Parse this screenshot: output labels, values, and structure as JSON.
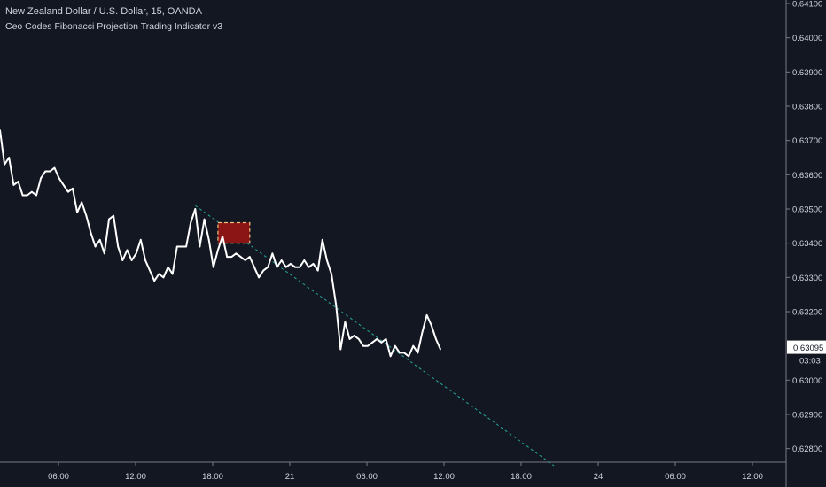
{
  "header": {
    "title": "New Zealand Dollar / U.S. Dollar, 15, OANDA",
    "indicator": "Ceo Codes Fibonacci Projection Trading Indicator v3"
  },
  "price_axis": {
    "current_price_label": "0.63095",
    "countdown_label": "03:03"
  },
  "colors": {
    "background": "#131722",
    "line": "#ffffff",
    "axis": "#787b86",
    "projection": "#26a69a",
    "box_fill": "#8b1414",
    "box_border": "#f0c080"
  },
  "chart_data": {
    "type": "line",
    "title": "New Zealand Dollar / U.S. Dollar, 15, OANDA",
    "xlabel": "",
    "ylabel": "",
    "grid": false,
    "x_ticks": [
      "06:00",
      "12:00",
      "18:00",
      "21",
      "06:00",
      "12:00",
      "18:00",
      "24",
      "06:00",
      "12:00"
    ],
    "y_ticks": [
      "0.64100",
      "0.64000",
      "0.63900",
      "0.63800",
      "0.63700",
      "0.63600",
      "0.63500",
      "0.63400",
      "0.63300",
      "0.63200",
      "0.63000",
      "0.62900",
      "0.62800"
    ],
    "ylim": [
      0.6275,
      0.641
    ],
    "xlim": [
      0,
      100
    ],
    "series": [
      {
        "values": [
          [
            0,
            0.6373
          ],
          [
            1,
            0.6363
          ],
          [
            2,
            0.6365
          ],
          [
            3,
            0.6357
          ],
          [
            4,
            0.6358
          ],
          [
            5,
            0.6354
          ],
          [
            6,
            0.6354
          ],
          [
            7,
            0.6355
          ],
          [
            8,
            0.6354
          ],
          [
            9,
            0.6359
          ],
          [
            10,
            0.6361
          ],
          [
            11,
            0.6361
          ],
          [
            12,
            0.6362
          ],
          [
            13,
            0.6359
          ],
          [
            14,
            0.6357
          ],
          [
            15,
            0.6355
          ],
          [
            16,
            0.6356
          ],
          [
            17,
            0.6349
          ],
          [
            18,
            0.6352
          ],
          [
            19,
            0.6348
          ],
          [
            20,
            0.6343
          ],
          [
            21,
            0.6339
          ],
          [
            22,
            0.6341
          ],
          [
            23,
            0.6337
          ],
          [
            24,
            0.6347
          ],
          [
            25,
            0.6348
          ],
          [
            26,
            0.6339
          ],
          [
            27,
            0.6335
          ],
          [
            28,
            0.6338
          ],
          [
            29,
            0.6335
          ],
          [
            30,
            0.6337
          ],
          [
            31,
            0.6341
          ],
          [
            32,
            0.6335
          ],
          [
            33,
            0.6332
          ],
          [
            34,
            0.6329
          ],
          [
            35,
            0.6331
          ],
          [
            36,
            0.633
          ],
          [
            37,
            0.6333
          ],
          [
            38,
            0.6331
          ],
          [
            39,
            0.6339
          ],
          [
            40,
            0.6339
          ],
          [
            41,
            0.6339
          ],
          [
            42,
            0.6346
          ],
          [
            43,
            0.635
          ],
          [
            44,
            0.6339
          ],
          [
            45,
            0.6347
          ],
          [
            46,
            0.6341
          ],
          [
            47,
            0.6333
          ],
          [
            48,
            0.6338
          ],
          [
            49,
            0.6342
          ],
          [
            50,
            0.6336
          ],
          [
            51,
            0.6336
          ],
          [
            52,
            0.6337
          ],
          [
            53,
            0.6336
          ],
          [
            54,
            0.6335
          ],
          [
            55,
            0.6336
          ],
          [
            56,
            0.6333
          ],
          [
            57,
            0.633
          ],
          [
            58,
            0.6332
          ],
          [
            59,
            0.6333
          ],
          [
            60,
            0.6337
          ],
          [
            61,
            0.6333
          ],
          [
            62,
            0.6335
          ],
          [
            63,
            0.6333
          ],
          [
            64,
            0.6334
          ],
          [
            65,
            0.6333
          ],
          [
            66,
            0.6333
          ],
          [
            67,
            0.6335
          ],
          [
            68,
            0.6333
          ],
          [
            69,
            0.6334
          ],
          [
            70,
            0.6332
          ],
          [
            71,
            0.6341
          ],
          [
            72,
            0.6335
          ],
          [
            73,
            0.6331
          ],
          [
            74,
            0.6322
          ],
          [
            75,
            0.6309
          ],
          [
            76,
            0.6317
          ],
          [
            77,
            0.6312
          ],
          [
            78,
            0.6313
          ],
          [
            79,
            0.6312
          ],
          [
            80,
            0.631
          ],
          [
            81,
            0.631
          ],
          [
            82,
            0.6311
          ],
          [
            83,
            0.6312
          ],
          [
            84,
            0.6311
          ],
          [
            85,
            0.6312
          ],
          [
            86,
            0.6307
          ],
          [
            87,
            0.631
          ],
          [
            88,
            0.6308
          ],
          [
            89,
            0.6308
          ],
          [
            90,
            0.6307
          ],
          [
            91,
            0.631
          ],
          [
            92,
            0.6308
          ],
          [
            93,
            0.6314
          ],
          [
            94,
            0.6319
          ],
          [
            95,
            0.6316
          ],
          [
            96,
            0.6312
          ],
          [
            97,
            0.6309
          ]
        ]
      }
    ],
    "projection_line": [
      [
        43,
        0.6351
      ],
      [
        122,
        0.6275
      ]
    ],
    "highlight_box": {
      "x0": 48,
      "x1": 55,
      "y0": 0.634,
      "y1": 0.6346
    }
  }
}
